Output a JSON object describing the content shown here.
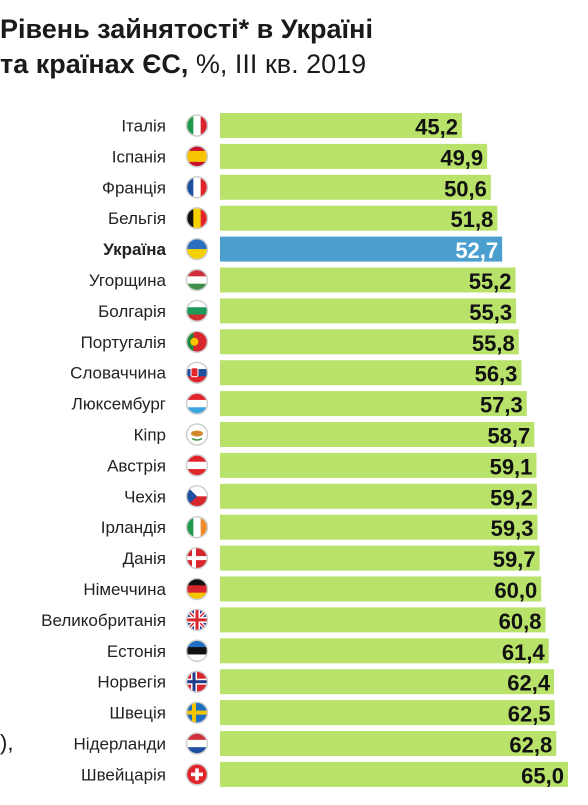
{
  "title": {
    "line1": "Рівень зайнятості* в Україні",
    "line2_bold": "та країнах ЄС,",
    "line2_rest": " %, III кв. 2019"
  },
  "fragment_text": "),",
  "colors": {
    "bar": "#b8e26a",
    "highlight": "#4a9fcf",
    "value_text": "#111111",
    "highlight_text": "#ffffff"
  },
  "chart_data": {
    "type": "bar",
    "orientation": "horizontal",
    "xlim": [
      0,
      65
    ],
    "highlight": "Україна",
    "categories": [
      "Італія",
      "Іспанія",
      "Франція",
      "Бельгія",
      "Україна",
      "Угорщина",
      "Болгарія",
      "Португалія",
      "Словаччина",
      "Люксембург",
      "Кіпр",
      "Австрія",
      "Чехія",
      "Ірландія",
      "Данія",
      "Німеччина",
      "Великобританія",
      "Естонія",
      "Норвегія",
      "Швеція",
      "Нідерланди",
      "Швейцарія"
    ],
    "values": [
      45.2,
      49.9,
      50.6,
      51.8,
      52.7,
      55.2,
      55.3,
      55.8,
      56.3,
      57.3,
      58.7,
      59.1,
      59.2,
      59.3,
      59.7,
      60.0,
      60.8,
      61.4,
      62.4,
      62.5,
      62.8,
      65.0
    ],
    "value_labels": [
      "45,2",
      "49,9",
      "50,6",
      "51,8",
      "52,7",
      "55,2",
      "55,3",
      "55,8",
      "56,3",
      "57,3",
      "58,7",
      "59,1",
      "59,2",
      "59,3",
      "59,7",
      "60,0",
      "60,8",
      "61,4",
      "62,4",
      "62,5",
      "62,8",
      "65,0"
    ],
    "flags": [
      "italy-flag-icon",
      "spain-flag-icon",
      "france-flag-icon",
      "belgium-flag-icon",
      "ukraine-flag-icon",
      "hungary-flag-icon",
      "bulgaria-flag-icon",
      "portugal-flag-icon",
      "slovakia-flag-icon",
      "luxembourg-flag-icon",
      "cyprus-flag-icon",
      "austria-flag-icon",
      "czechia-flag-icon",
      "ireland-flag-icon",
      "denmark-flag-icon",
      "germany-flag-icon",
      "uk-flag-icon",
      "estonia-flag-icon",
      "norway-flag-icon",
      "sweden-flag-icon",
      "netherlands-flag-icon",
      "switzerland-flag-icon"
    ]
  }
}
